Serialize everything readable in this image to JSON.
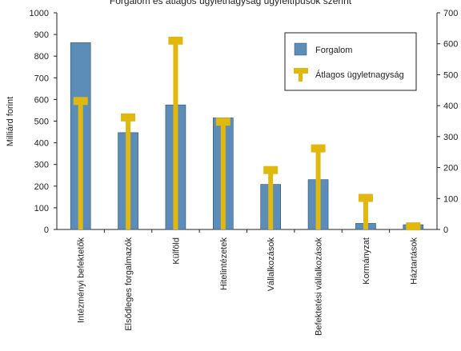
{
  "chart_data": {
    "type": "bar",
    "title": "Forgalom és átlagos ügyletnagyság ügyféltípusok szerint",
    "ylabel": "Milliárd forint",
    "y2label": "",
    "ylim": [
      0,
      1000
    ],
    "y2lim": [
      0,
      700
    ],
    "yticks": [
      0,
      100,
      200,
      300,
      400,
      500,
      600,
      700,
      800,
      900,
      1000
    ],
    "y2ticks": [
      0,
      100,
      200,
      300,
      400,
      500,
      600,
      700
    ],
    "categories": [
      "Intézményi befektetők",
      "Elsődleges forgalmazók",
      "Külföld",
      "Hitelintézetek",
      "Vállalkozások",
      "Befektetési vállalkozások",
      "Kormányzat",
      "Háztartások"
    ],
    "series": [
      {
        "name": "Forgalom",
        "axis": "left",
        "kind": "bar",
        "color": "#5b8db8",
        "values": [
          862,
          447,
          575,
          515,
          208,
          230,
          28,
          22
        ]
      },
      {
        "name": "Átlagos ügyletnagyság",
        "axis": "right",
        "kind": "lollipop",
        "color": "#e1b80d",
        "values": [
          415,
          362,
          610,
          348,
          192,
          262,
          102,
          10
        ]
      }
    ],
    "legend_position": "top-right",
    "grid": false
  }
}
